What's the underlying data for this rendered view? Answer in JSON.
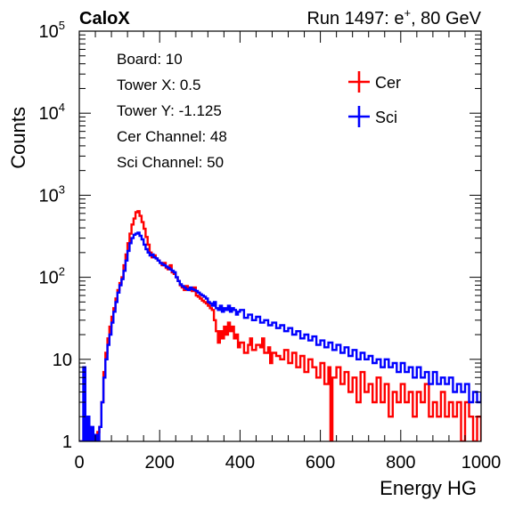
{
  "chart_data": {
    "type": "line",
    "title_left": "CaloX",
    "title_right_prefix": "Run 1497: e",
    "title_right_sup": "+",
    "title_right_suffix": ", 80 GeV",
    "xlabel": "Energy HG",
    "ylabel": "Counts",
    "xlim": [
      0,
      1000
    ],
    "ylim": [
      1,
      100000
    ],
    "yscale": "log",
    "x_ticks": [
      0,
      200,
      400,
      600,
      800,
      1000
    ],
    "x_tick_labels": [
      "0",
      "200",
      "400",
      "600",
      "800",
      "1000"
    ],
    "y_tick_labels": [
      {
        "value": 1,
        "base": "1",
        "exp": ""
      },
      {
        "value": 10,
        "base": "10",
        "exp": ""
      },
      {
        "value": 100,
        "base": "10",
        "exp": "2"
      },
      {
        "value": 1000,
        "base": "10",
        "exp": "3"
      },
      {
        "value": 10000,
        "base": "10",
        "exp": "4"
      },
      {
        "value": 100000,
        "base": "10",
        "exp": "5"
      }
    ],
    "info_lines": [
      "Board: 10",
      "Tower X: 0.5",
      "Tower Y: -1.125",
      "Cer Channel: 48",
      "Sci Channel: 50"
    ],
    "legend_placement": "top-right",
    "series": [
      {
        "name": "Cer",
        "color": "#ff0000",
        "points": [
          [
            0,
            1
          ],
          [
            10,
            1
          ],
          [
            15,
            1
          ],
          [
            20,
            1
          ],
          [
            25,
            1.5
          ],
          [
            28,
            1
          ],
          [
            30,
            1
          ],
          [
            35,
            1.2
          ],
          [
            40,
            1
          ],
          [
            45,
            1.3
          ],
          [
            50,
            1.5
          ],
          [
            55,
            3
          ],
          [
            60,
            7
          ],
          [
            65,
            12
          ],
          [
            70,
            18
          ],
          [
            75,
            25
          ],
          [
            80,
            33
          ],
          [
            85,
            42
          ],
          [
            90,
            55
          ],
          [
            95,
            70
          ],
          [
            100,
            85
          ],
          [
            105,
            100
          ],
          [
            110,
            140
          ],
          [
            115,
            190
          ],
          [
            120,
            260
          ],
          [
            125,
            340
          ],
          [
            130,
            440
          ],
          [
            135,
            520
          ],
          [
            140,
            620
          ],
          [
            145,
            640
          ],
          [
            150,
            560
          ],
          [
            155,
            470
          ],
          [
            160,
            390
          ],
          [
            165,
            310
          ],
          [
            170,
            250
          ],
          [
            175,
            200
          ],
          [
            180,
            175
          ],
          [
            185,
            185
          ],
          [
            190,
            170
          ],
          [
            195,
            160
          ],
          [
            200,
            150
          ],
          [
            205,
            140
          ],
          [
            210,
            150
          ],
          [
            215,
            130
          ],
          [
            220,
            125
          ],
          [
            225,
            140
          ],
          [
            230,
            115
          ],
          [
            235,
            110
          ],
          [
            240,
            100
          ],
          [
            245,
            90
          ],
          [
            250,
            80
          ],
          [
            255,
            75
          ],
          [
            260,
            70
          ],
          [
            265,
            78
          ],
          [
            270,
            72
          ],
          [
            275,
            70
          ],
          [
            280,
            68
          ],
          [
            285,
            75
          ],
          [
            290,
            60
          ],
          [
            295,
            58
          ],
          [
            300,
            55
          ],
          [
            305,
            52
          ],
          [
            310,
            50
          ],
          [
            315,
            48
          ],
          [
            320,
            45
          ],
          [
            325,
            42
          ],
          [
            330,
            40
          ],
          [
            335,
            30
          ],
          [
            340,
            22
          ],
          [
            345,
            16
          ],
          [
            350,
            22
          ],
          [
            355,
            18
          ],
          [
            360,
            25
          ],
          [
            365,
            20
          ],
          [
            370,
            28
          ],
          [
            375,
            22
          ],
          [
            380,
            25
          ],
          [
            385,
            18
          ],
          [
            390,
            20
          ],
          [
            395,
            14
          ],
          [
            400,
            16
          ],
          [
            410,
            12
          ],
          [
            420,
            15
          ],
          [
            425,
            18
          ],
          [
            430,
            13
          ],
          [
            440,
            15
          ],
          [
            450,
            14
          ],
          [
            455,
            18
          ],
          [
            460,
            12
          ],
          [
            470,
            14
          ],
          [
            475,
            9
          ],
          [
            480,
            12
          ],
          [
            490,
            11
          ],
          [
            500,
            10
          ],
          [
            510,
            13
          ],
          [
            520,
            9
          ],
          [
            530,
            12
          ],
          [
            540,
            8
          ],
          [
            550,
            11
          ],
          [
            560,
            7
          ],
          [
            570,
            10
          ],
          [
            580,
            8
          ],
          [
            590,
            6
          ],
          [
            600,
            9
          ],
          [
            610,
            5
          ],
          [
            620,
            8
          ],
          [
            625,
            1
          ],
          [
            630,
            6
          ],
          [
            640,
            8
          ],
          [
            650,
            5
          ],
          [
            660,
            7
          ],
          [
            670,
            4
          ],
          [
            680,
            6
          ],
          [
            690,
            3
          ],
          [
            700,
            7
          ],
          [
            710,
            4
          ],
          [
            720,
            5
          ],
          [
            730,
            3
          ],
          [
            740,
            6
          ],
          [
            750,
            3
          ],
          [
            760,
            5
          ],
          [
            770,
            2
          ],
          [
            780,
            4
          ],
          [
            790,
            3
          ],
          [
            800,
            5
          ],
          [
            810,
            3
          ],
          [
            820,
            4
          ],
          [
            830,
            2
          ],
          [
            840,
            4
          ],
          [
            850,
            3
          ],
          [
            860,
            5
          ],
          [
            870,
            2
          ],
          [
            880,
            3
          ],
          [
            890,
            2
          ],
          [
            900,
            4
          ],
          [
            910,
            2
          ],
          [
            920,
            3
          ],
          [
            930,
            2
          ],
          [
            940,
            3
          ],
          [
            950,
            1
          ],
          [
            960,
            3
          ],
          [
            970,
            2
          ],
          [
            980,
            1
          ],
          [
            990,
            2
          ],
          [
            1000,
            1
          ]
        ]
      },
      {
        "name": "Sci",
        "color": "#0000ff",
        "points": [
          [
            0,
            1
          ],
          [
            5,
            1
          ],
          [
            10,
            8
          ],
          [
            15,
            1
          ],
          [
            20,
            2
          ],
          [
            25,
            1
          ],
          [
            30,
            1.5
          ],
          [
            35,
            1
          ],
          [
            40,
            1.2
          ],
          [
            45,
            1
          ],
          [
            50,
            1.5
          ],
          [
            55,
            3
          ],
          [
            60,
            6
          ],
          [
            65,
            10
          ],
          [
            70,
            15
          ],
          [
            75,
            20
          ],
          [
            80,
            28
          ],
          [
            85,
            38
          ],
          [
            90,
            50
          ],
          [
            95,
            65
          ],
          [
            100,
            80
          ],
          [
            105,
            95
          ],
          [
            110,
            120
          ],
          [
            115,
            160
          ],
          [
            120,
            210
          ],
          [
            125,
            260
          ],
          [
            130,
            300
          ],
          [
            135,
            330
          ],
          [
            140,
            340
          ],
          [
            145,
            350
          ],
          [
            150,
            320
          ],
          [
            155,
            290
          ],
          [
            160,
            250
          ],
          [
            165,
            220
          ],
          [
            170,
            200
          ],
          [
            175,
            185
          ],
          [
            180,
            190
          ],
          [
            185,
            175
          ],
          [
            190,
            170
          ],
          [
            195,
            160
          ],
          [
            200,
            150
          ],
          [
            205,
            145
          ],
          [
            210,
            140
          ],
          [
            215,
            135
          ],
          [
            220,
            130
          ],
          [
            225,
            125
          ],
          [
            230,
            120
          ],
          [
            235,
            115
          ],
          [
            240,
            100
          ],
          [
            245,
            90
          ],
          [
            250,
            82
          ],
          [
            255,
            78
          ],
          [
            260,
            75
          ],
          [
            265,
            72
          ],
          [
            270,
            70
          ],
          [
            275,
            75
          ],
          [
            280,
            72
          ],
          [
            285,
            70
          ],
          [
            290,
            68
          ],
          [
            295,
            65
          ],
          [
            300,
            62
          ],
          [
            305,
            60
          ],
          [
            310,
            58
          ],
          [
            315,
            55
          ],
          [
            320,
            50
          ],
          [
            325,
            48
          ],
          [
            330,
            45
          ],
          [
            335,
            50
          ],
          [
            340,
            42
          ],
          [
            345,
            40
          ],
          [
            350,
            45
          ],
          [
            355,
            38
          ],
          [
            360,
            42
          ],
          [
            365,
            40
          ],
          [
            370,
            45
          ],
          [
            375,
            38
          ],
          [
            380,
            42
          ],
          [
            385,
            40
          ],
          [
            390,
            35
          ],
          [
            395,
            38
          ],
          [
            400,
            40
          ],
          [
            410,
            32
          ],
          [
            420,
            35
          ],
          [
            430,
            30
          ],
          [
            440,
            33
          ],
          [
            450,
            28
          ],
          [
            460,
            30
          ],
          [
            470,
            26
          ],
          [
            480,
            28
          ],
          [
            490,
            24
          ],
          [
            500,
            26
          ],
          [
            510,
            22
          ],
          [
            520,
            24
          ],
          [
            530,
            20
          ],
          [
            540,
            22
          ],
          [
            550,
            18
          ],
          [
            560,
            20
          ],
          [
            570,
            17
          ],
          [
            580,
            19
          ],
          [
            590,
            15
          ],
          [
            600,
            17
          ],
          [
            610,
            14
          ],
          [
            620,
            16
          ],
          [
            630,
            13
          ],
          [
            640,
            15
          ],
          [
            650,
            12
          ],
          [
            660,
            14
          ],
          [
            670,
            11
          ],
          [
            680,
            13
          ],
          [
            690,
            10
          ],
          [
            700,
            12
          ],
          [
            710,
            10
          ],
          [
            720,
            11
          ],
          [
            730,
            9
          ],
          [
            740,
            10
          ],
          [
            750,
            8
          ],
          [
            760,
            10
          ],
          [
            770,
            8
          ],
          [
            780,
            9
          ],
          [
            790,
            7
          ],
          [
            800,
            9
          ],
          [
            810,
            7
          ],
          [
            820,
            8
          ],
          [
            830,
            6
          ],
          [
            840,
            8
          ],
          [
            850,
            6
          ],
          [
            860,
            7
          ],
          [
            870,
            5
          ],
          [
            880,
            7
          ],
          [
            890,
            5
          ],
          [
            900,
            6
          ],
          [
            910,
            5
          ],
          [
            920,
            6
          ],
          [
            930,
            4
          ],
          [
            940,
            5
          ],
          [
            950,
            4
          ],
          [
            960,
            5
          ],
          [
            970,
            3
          ],
          [
            980,
            4
          ],
          [
            990,
            3
          ],
          [
            1000,
            4
          ]
        ]
      }
    ]
  }
}
